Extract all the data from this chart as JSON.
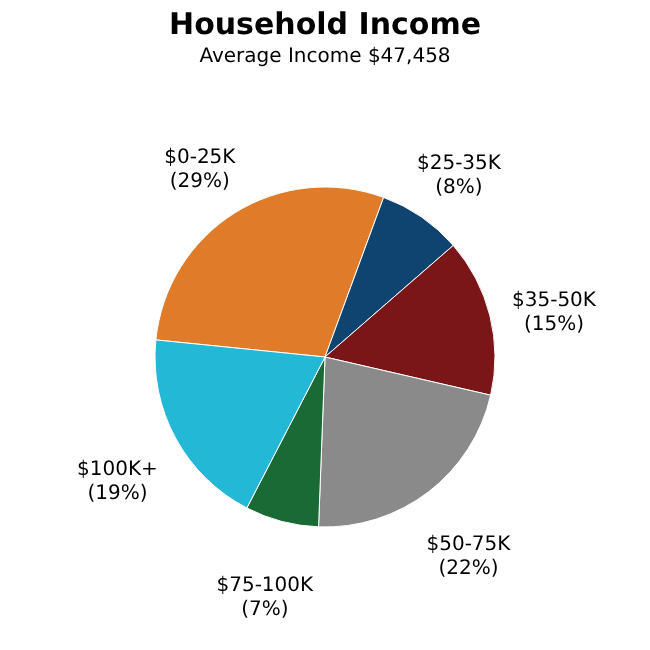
{
  "chart_data": {
    "type": "pie",
    "title": "Household Income",
    "subtitle": "Average Income  $47,458",
    "categories": [
      "$0-25K",
      "$25-35K",
      "$35-50K",
      "$50-75K",
      "$75-100K",
      "$100K+"
    ],
    "values": [
      29,
      8,
      15,
      22,
      7,
      19
    ],
    "value_labels": [
      "(29%)",
      "(8%)",
      "(15%)",
      "(22%)",
      "(7%)",
      "(19%)"
    ],
    "colors": [
      "#e07b2a",
      "#0f4470",
      "#7a1518",
      "#8a8a8a",
      "#1a6a35",
      "#22b8d6"
    ],
    "legend": false
  }
}
